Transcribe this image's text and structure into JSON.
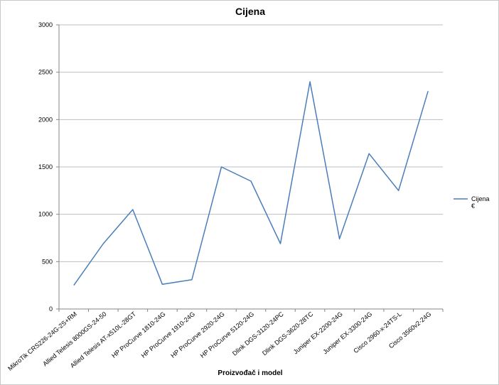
{
  "chart_data": {
    "type": "line",
    "title": "Cijena",
    "xlabel": "Proizvođač i model",
    "ylabel": "",
    "ylim": [
      0,
      3000
    ],
    "yticks": [
      0,
      500,
      1000,
      1500,
      2000,
      2500,
      3000
    ],
    "grid": true,
    "legend_position": "right",
    "categories": [
      "MikroTik CRS226-24G-2S+RM",
      "Allied Telesis 8000GS-24-50",
      "Allied Telesis AT-x510L-28GT",
      "HP ProCurve 1810-24G",
      "HP ProCurve 1910-24G",
      "HP ProCurve 2920-24G",
      "HP ProCurve 5120-24G",
      "Dlink DGS-3120-24PC",
      "Dlink DGS-3620-28TC",
      "Juniper EX-2200-24G",
      "Juniper EX-3300-24G",
      "Cisco 2960-x-24TS-L",
      "Cisco 3560v2-24G"
    ],
    "series": [
      {
        "name": "Cijena €",
        "name_line1": "Cijena",
        "name_line2": "€",
        "color": "#4a7ebb",
        "values": [
          250,
          690,
          1050,
          260,
          310,
          1500,
          1350,
          690,
          2400,
          740,
          1640,
          1250,
          2300
        ]
      }
    ]
  }
}
